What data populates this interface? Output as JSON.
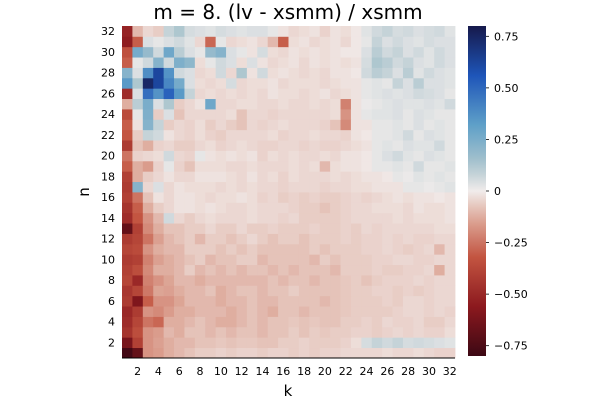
{
  "chart_data": {
    "type": "heatmap",
    "title": "m = 8. (lv - xsmm) / xsmm",
    "xlabel": "k",
    "ylabel": "n",
    "x": [
      1,
      2,
      3,
      4,
      5,
      6,
      7,
      8,
      9,
      10,
      11,
      12,
      13,
      14,
      15,
      16,
      17,
      18,
      19,
      20,
      21,
      22,
      23,
      24,
      25,
      26,
      27,
      28,
      29,
      30,
      31,
      32
    ],
    "y": [
      1,
      2,
      3,
      4,
      5,
      6,
      7,
      8,
      9,
      10,
      11,
      12,
      13,
      14,
      15,
      16,
      17,
      18,
      19,
      20,
      21,
      22,
      23,
      24,
      25,
      26,
      27,
      28,
      29,
      30,
      31,
      32
    ],
    "x_ticks": [
      2,
      4,
      6,
      8,
      10,
      12,
      14,
      16,
      18,
      20,
      22,
      24,
      26,
      28,
      30,
      32
    ],
    "y_ticks": [
      2,
      4,
      6,
      8,
      10,
      12,
      14,
      16,
      18,
      20,
      22,
      24,
      26,
      28,
      30,
      32
    ],
    "xlim": [
      0.5,
      32.5
    ],
    "ylim": [
      0.5,
      32.5
    ],
    "grid": false,
    "colorbar": {
      "colormap": "balance",
      "clim": [
        -0.8,
        0.8
      ],
      "ticks": [
        -0.75,
        -0.5,
        -0.25,
        0,
        0.25,
        0.5,
        0.75
      ],
      "tick_labels": [
        "−0.75",
        "−0.50",
        "−0.25",
        "0",
        "0.25",
        "0.50",
        "0.75"
      ]
    },
    "z_rows_bottom_to_top": [
      [
        -0.78,
        -0.68,
        -0.18,
        -0.16,
        -0.12,
        -0.1,
        -0.08,
        -0.06,
        -0.06,
        -0.05,
        -0.06,
        -0.05,
        -0.05,
        -0.06,
        -0.05,
        -0.05,
        -0.06,
        -0.05,
        -0.06,
        -0.05,
        -0.05,
        -0.04,
        -0.04,
        -0.04,
        -0.04,
        -0.03,
        -0.04,
        -0.04,
        -0.03,
        -0.04,
        -0.05,
        -0.05
      ],
      [
        -0.62,
        -0.4,
        -0.18,
        -0.15,
        -0.12,
        -0.1,
        -0.1,
        -0.08,
        -0.08,
        -0.07,
        -0.08,
        -0.07,
        -0.07,
        -0.08,
        -0.08,
        -0.06,
        -0.06,
        -0.05,
        -0.06,
        -0.06,
        -0.06,
        -0.05,
        -0.03,
        0.05,
        0.08,
        0.06,
        0.08,
        0.05,
        0.06,
        0.05,
        0.04,
        0.03
      ],
      [
        -0.45,
        -0.35,
        -0.18,
        -0.16,
        -0.1,
        -0.12,
        -0.08,
        -0.08,
        -0.1,
        -0.08,
        -0.1,
        -0.08,
        -0.08,
        -0.1,
        -0.08,
        -0.08,
        -0.06,
        -0.08,
        -0.06,
        -0.07,
        -0.06,
        -0.06,
        -0.05,
        -0.05,
        -0.06,
        -0.05,
        -0.04,
        -0.05,
        -0.04,
        -0.05,
        -0.05,
        -0.03
      ],
      [
        -0.48,
        -0.38,
        -0.25,
        -0.28,
        -0.12,
        -0.12,
        -0.1,
        -0.08,
        -0.1,
        -0.12,
        -0.12,
        -0.1,
        -0.08,
        -0.1,
        -0.08,
        -0.08,
        -0.07,
        -0.08,
        -0.07,
        -0.08,
        -0.08,
        -0.06,
        -0.06,
        -0.05,
        -0.06,
        -0.04,
        -0.05,
        -0.05,
        -0.04,
        -0.06,
        -0.06,
        -0.04
      ],
      [
        -0.5,
        -0.42,
        -0.18,
        -0.2,
        -0.16,
        -0.12,
        -0.12,
        -0.1,
        -0.1,
        -0.1,
        -0.12,
        -0.1,
        -0.08,
        -0.1,
        -0.12,
        -0.08,
        -0.08,
        -0.1,
        -0.08,
        -0.08,
        -0.08,
        -0.07,
        -0.06,
        -0.06,
        -0.06,
        -0.06,
        -0.05,
        -0.04,
        -0.04,
        -0.05,
        -0.04,
        -0.05
      ],
      [
        -0.42,
        -0.6,
        -0.3,
        -0.18,
        -0.18,
        -0.14,
        -0.1,
        -0.1,
        -0.1,
        -0.12,
        -0.1,
        -0.1,
        -0.08,
        -0.1,
        -0.1,
        -0.08,
        -0.08,
        -0.08,
        -0.08,
        -0.1,
        -0.08,
        -0.07,
        -0.06,
        -0.06,
        -0.06,
        -0.05,
        -0.06,
        -0.04,
        -0.04,
        -0.05,
        -0.04,
        -0.04
      ],
      [
        -0.44,
        -0.38,
        -0.24,
        -0.14,
        -0.15,
        -0.12,
        -0.1,
        -0.1,
        -0.08,
        -0.12,
        -0.1,
        -0.08,
        -0.08,
        -0.1,
        -0.08,
        -0.08,
        -0.06,
        -0.08,
        -0.08,
        -0.08,
        -0.08,
        -0.07,
        -0.06,
        -0.06,
        -0.05,
        -0.05,
        -0.06,
        -0.05,
        -0.06,
        -0.05,
        -0.04,
        -0.04
      ],
      [
        -0.38,
        -0.5,
        -0.22,
        -0.18,
        -0.14,
        -0.1,
        -0.1,
        -0.12,
        -0.1,
        -0.1,
        -0.1,
        -0.1,
        -0.1,
        -0.1,
        -0.08,
        -0.1,
        -0.08,
        -0.08,
        -0.1,
        -0.08,
        -0.08,
        -0.07,
        -0.06,
        -0.08,
        -0.06,
        -0.05,
        -0.05,
        -0.05,
        -0.04,
        -0.05,
        -0.04,
        -0.04
      ],
      [
        -0.4,
        -0.35,
        -0.2,
        -0.12,
        -0.12,
        -0.1,
        -0.06,
        -0.1,
        -0.08,
        -0.1,
        -0.08,
        -0.1,
        -0.08,
        -0.08,
        -0.1,
        -0.08,
        -0.1,
        -0.08,
        -0.08,
        -0.08,
        -0.1,
        -0.06,
        -0.06,
        -0.06,
        -0.05,
        -0.06,
        -0.06,
        -0.05,
        -0.05,
        -0.04,
        -0.12,
        -0.04
      ],
      [
        -0.42,
        -0.4,
        -0.22,
        -0.15,
        -0.12,
        -0.1,
        -0.08,
        -0.06,
        -0.1,
        -0.08,
        -0.08,
        -0.06,
        -0.06,
        -0.1,
        -0.08,
        -0.08,
        -0.08,
        -0.08,
        -0.1,
        -0.06,
        -0.08,
        -0.06,
        -0.06,
        -0.06,
        -0.05,
        -0.05,
        -0.04,
        -0.04,
        -0.05,
        -0.05,
        -0.04,
        -0.04
      ],
      [
        -0.38,
        -0.36,
        -0.18,
        -0.12,
        -0.1,
        -0.1,
        -0.06,
        -0.06,
        -0.06,
        -0.08,
        -0.06,
        -0.08,
        -0.06,
        -0.08,
        -0.08,
        -0.08,
        -0.08,
        -0.08,
        -0.06,
        -0.08,
        -0.06,
        -0.06,
        -0.06,
        -0.05,
        -0.05,
        -0.04,
        -0.05,
        -0.06,
        -0.05,
        -0.04,
        -0.1,
        -0.04
      ],
      [
        -0.42,
        -0.38,
        -0.25,
        -0.15,
        -0.1,
        -0.08,
        -0.06,
        -0.1,
        -0.06,
        -0.06,
        -0.08,
        -0.06,
        -0.04,
        -0.06,
        -0.08,
        -0.06,
        -0.06,
        -0.08,
        -0.06,
        -0.06,
        -0.06,
        -0.05,
        -0.06,
        -0.05,
        -0.05,
        -0.04,
        -0.05,
        -0.04,
        -0.05,
        -0.05,
        -0.04,
        -0.04
      ],
      [
        -0.68,
        -0.4,
        -0.2,
        -0.12,
        -0.08,
        -0.08,
        -0.06,
        -0.06,
        -0.04,
        -0.06,
        -0.06,
        -0.04,
        -0.06,
        -0.06,
        -0.05,
        -0.06,
        -0.06,
        -0.06,
        -0.05,
        -0.06,
        -0.06,
        -0.05,
        -0.06,
        -0.04,
        -0.05,
        -0.04,
        -0.04,
        -0.04,
        -0.04,
        -0.04,
        -0.03,
        -0.03
      ],
      [
        -0.48,
        -0.32,
        -0.18,
        -0.1,
        0.06,
        -0.04,
        -0.06,
        -0.04,
        -0.03,
        -0.04,
        -0.04,
        -0.04,
        -0.03,
        -0.04,
        -0.04,
        -0.05,
        -0.04,
        -0.06,
        -0.06,
        -0.06,
        -0.06,
        -0.05,
        -0.04,
        -0.04,
        -0.04,
        -0.04,
        -0.03,
        -0.04,
        -0.03,
        -0.03,
        -0.03,
        -0.02
      ],
      [
        -0.45,
        -0.3,
        -0.12,
        -0.06,
        -0.04,
        -0.02,
        -0.02,
        -0.03,
        -0.02,
        -0.03,
        -0.04,
        -0.04,
        -0.03,
        -0.04,
        -0.04,
        -0.04,
        -0.05,
        -0.06,
        -0.06,
        -0.08,
        -0.06,
        -0.05,
        -0.04,
        -0.04,
        -0.03,
        -0.03,
        -0.03,
        -0.04,
        -0.02,
        -0.03,
        -0.03,
        -0.02
      ],
      [
        -0.4,
        -0.25,
        -0.08,
        -0.02,
        -0.04,
        -0.02,
        -0.02,
        -0.03,
        -0.04,
        -0.03,
        -0.03,
        -0.02,
        -0.03,
        -0.05,
        -0.04,
        -0.06,
        -0.05,
        -0.06,
        -0.05,
        -0.06,
        -0.06,
        -0.05,
        -0.04,
        -0.05,
        -0.04,
        -0.03,
        -0.02,
        -0.03,
        -0.02,
        -0.02,
        -0.01,
        -0.02
      ],
      [
        -0.42,
        0.22,
        -0.04,
        0.04,
        -0.04,
        -0.02,
        -0.03,
        -0.03,
        -0.03,
        -0.04,
        -0.03,
        -0.04,
        -0.03,
        -0.04,
        -0.04,
        -0.05,
        -0.04,
        -0.04,
        -0.04,
        -0.05,
        -0.04,
        -0.04,
        -0.03,
        -0.03,
        -0.02,
        -0.02,
        -0.02,
        0.02,
        0.02,
        0.01,
        0.02,
        0.03
      ],
      [
        -0.4,
        -0.12,
        -0.06,
        -0.04,
        -0.02,
        -0.04,
        -0.04,
        -0.02,
        -0.02,
        -0.02,
        -0.03,
        -0.04,
        -0.02,
        -0.04,
        -0.03,
        -0.05,
        -0.03,
        -0.04,
        -0.04,
        -0.04,
        -0.03,
        -0.04,
        -0.03,
        -0.02,
        -0.02,
        -0.01,
        0.02,
        0.01,
        0.03,
        0.02,
        0.03,
        0.02
      ],
      [
        -0.3,
        -0.12,
        -0.16,
        -0.05,
        0.02,
        -0.05,
        -0.08,
        -0.03,
        -0.03,
        -0.03,
        -0.04,
        -0.04,
        -0.03,
        -0.04,
        -0.04,
        -0.04,
        -0.03,
        -0.04,
        -0.03,
        -0.1,
        -0.03,
        -0.02,
        -0.02,
        -0.01,
        0.02,
        0.02,
        0.03,
        0.02,
        0.06,
        0.02,
        0.02,
        0.03
      ],
      [
        -0.25,
        -0.05,
        -0.04,
        -0.03,
        0.06,
        -0.04,
        -0.05,
        0.02,
        -0.02,
        -0.03,
        -0.02,
        -0.03,
        -0.02,
        -0.05,
        -0.03,
        -0.04,
        -0.03,
        -0.04,
        -0.04,
        -0.03,
        -0.04,
        -0.02,
        -0.02,
        -0.01,
        0.02,
        0.04,
        0.06,
        0.03,
        0.02,
        0.04,
        0.03,
        0.02
      ],
      [
        -0.42,
        -0.08,
        -0.12,
        -0.05,
        -0.04,
        -0.06,
        -0.06,
        -0.04,
        -0.03,
        -0.05,
        -0.04,
        -0.03,
        -0.04,
        -0.05,
        -0.05,
        -0.04,
        -0.04,
        -0.05,
        -0.04,
        -0.05,
        -0.05,
        -0.04,
        -0.03,
        -0.02,
        0.02,
        0.03,
        0.02,
        0.04,
        0.03,
        0.03,
        0.06,
        0.02
      ],
      [
        -0.32,
        -0.06,
        0.08,
        0.06,
        -0.02,
        -0.04,
        -0.05,
        -0.03,
        -0.05,
        -0.06,
        -0.04,
        -0.04,
        -0.04,
        -0.04,
        -0.03,
        -0.05,
        -0.04,
        -0.04,
        -0.03,
        -0.04,
        -0.04,
        -0.05,
        -0.02,
        -0.01,
        0.02,
        0.02,
        0.03,
        0.06,
        0.02,
        0.04,
        0.03,
        0.02
      ],
      [
        -0.3,
        -0.02,
        0.22,
        0.08,
        -0.06,
        -0.04,
        -0.05,
        -0.03,
        -0.06,
        -0.04,
        -0.06,
        -0.08,
        -0.04,
        -0.05,
        -0.04,
        -0.03,
        -0.04,
        -0.04,
        -0.04,
        -0.05,
        -0.08,
        -0.2,
        -0.02,
        -0.02,
        0.02,
        0.02,
        0.03,
        0.02,
        0.04,
        0.02,
        0.03,
        0.02
      ],
      [
        -0.36,
        0.02,
        0.24,
        -0.06,
        0.04,
        -0.08,
        -0.04,
        -0.04,
        -0.04,
        -0.04,
        -0.03,
        -0.08,
        -0.04,
        -0.04,
        -0.05,
        -0.04,
        -0.04,
        -0.04,
        -0.04,
        -0.04,
        -0.03,
        -0.18,
        -0.02,
        0.02,
        0.03,
        0.03,
        0.04,
        0.02,
        0.04,
        0.03,
        0.02,
        0.02
      ],
      [
        -0.12,
        0.1,
        0.25,
        0.04,
        0.12,
        -0.06,
        -0.04,
        -0.02,
        0.28,
        -0.04,
        -0.04,
        -0.03,
        -0.03,
        -0.04,
        -0.04,
        -0.03,
        -0.04,
        -0.04,
        -0.03,
        -0.04,
        -0.03,
        -0.22,
        -0.02,
        0.01,
        0.02,
        0.03,
        0.04,
        0.03,
        0.03,
        0.04,
        0.03,
        0.06
      ],
      [
        -0.48,
        0.04,
        0.48,
        0.36,
        0.52,
        0.34,
        0.08,
        -0.04,
        -0.03,
        -0.04,
        -0.03,
        -0.04,
        -0.03,
        -0.04,
        -0.02,
        -0.03,
        -0.03,
        -0.04,
        -0.03,
        -0.02,
        -0.04,
        -0.03,
        -0.02,
        0.02,
        0.03,
        0.04,
        0.03,
        0.04,
        0.06,
        0.05,
        0.04,
        0.02
      ],
      [
        0.34,
        0.12,
        0.74,
        0.62,
        0.4,
        0.26,
        0.04,
        -0.03,
        -0.04,
        -0.03,
        0.05,
        -0.04,
        -0.03,
        -0.03,
        -0.02,
        -0.04,
        -0.03,
        -0.03,
        -0.03,
        -0.04,
        -0.03,
        -0.02,
        -0.02,
        0.02,
        0.03,
        0.02,
        0.08,
        0.04,
        0.1,
        0.04,
        0.04,
        0.03
      ],
      [
        0.22,
        0.04,
        0.38,
        0.62,
        0.36,
        0.06,
        0.04,
        -0.04,
        -0.03,
        0.06,
        -0.04,
        0.12,
        -0.02,
        0.06,
        -0.03,
        -0.02,
        -0.03,
        -0.04,
        -0.03,
        -0.04,
        -0.02,
        -0.02,
        -0.01,
        0.06,
        0.1,
        0.08,
        0.04,
        0.1,
        0.03,
        0.06,
        0.04,
        0.03
      ],
      [
        -0.3,
        0.02,
        0.06,
        0.22,
        0.06,
        0.24,
        0.2,
        -0.03,
        0.02,
        0.06,
        0.04,
        -0.03,
        0.04,
        -0.02,
        -0.04,
        -0.03,
        -0.02,
        -0.04,
        -0.02,
        -0.03,
        -0.02,
        -0.03,
        -0.02,
        0.05,
        0.12,
        0.1,
        0.06,
        0.08,
        0.04,
        0.03,
        0.06,
        0.04
      ],
      [
        -0.34,
        0.26,
        0.18,
        0.06,
        0.28,
        0.1,
        0.04,
        0.02,
        0.18,
        0.22,
        0.04,
        0.02,
        -0.02,
        0.05,
        -0.03,
        -0.04,
        -0.02,
        -0.03,
        -0.02,
        -0.03,
        -0.02,
        -0.01,
        -0.01,
        0.04,
        0.1,
        0.06,
        0.08,
        0.04,
        0.06,
        0.03,
        0.06,
        0.04
      ],
      [
        -0.55,
        -0.3,
        0.04,
        0.02,
        0.04,
        0.06,
        0.03,
        -0.04,
        -0.28,
        0.02,
        -0.04,
        -0.03,
        -0.02,
        -0.04,
        -0.1,
        -0.3,
        -0.03,
        -0.02,
        -0.04,
        -0.03,
        -0.02,
        -0.04,
        -0.01,
        0.02,
        0.08,
        0.04,
        0.06,
        0.04,
        0.03,
        0.05,
        0.04,
        0.04
      ],
      [
        -0.52,
        -0.1,
        -0.04,
        -0.06,
        0.08,
        0.12,
        0.05,
        0.04,
        0.03,
        0.05,
        0.04,
        0.03,
        0.04,
        0.04,
        0.02,
        -0.02,
        -0.04,
        -0.03,
        -0.02,
        -0.05,
        -0.02,
        -0.03,
        -0.01,
        0.03,
        0.06,
        0.08,
        0.05,
        0.06,
        0.04,
        0.05,
        0.06,
        0.03
      ]
    ]
  }
}
